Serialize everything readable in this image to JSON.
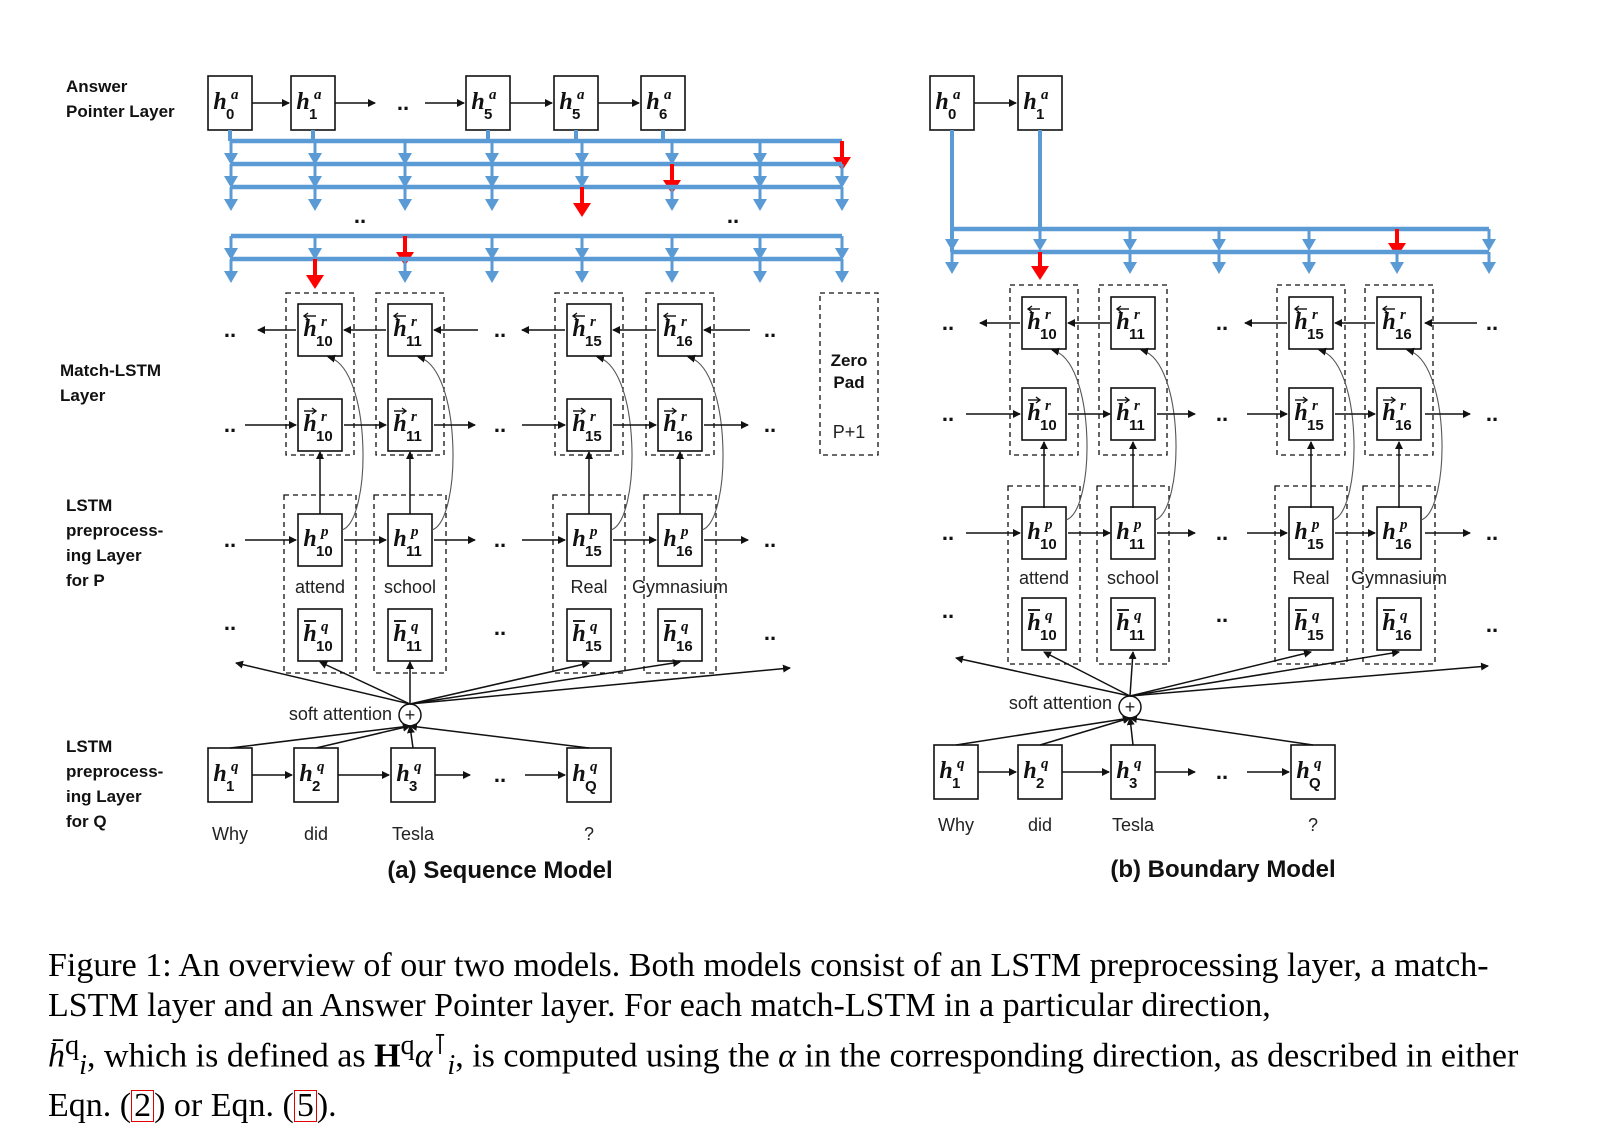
{
  "figure": {
    "layer_labels": {
      "answer_pointer": [
        "Answer",
        "Pointer Layer"
      ],
      "match_lstm": [
        "Match-LSTM",
        "Layer"
      ],
      "lstm_p": [
        "LSTM",
        "preprocess-",
        "ing Layer",
        "for P"
      ],
      "lstm_q": [
        "LSTM",
        "preprocess-",
        "ing Layer",
        "for Q"
      ]
    },
    "sequence_model": {
      "subtitle": "(a) Sequence Model",
      "answer_states": [
        {
          "sub": "0",
          "sup": "a"
        },
        {
          "sub": "1",
          "sup": "a"
        },
        {
          "sub": "5",
          "sup": "a"
        },
        {
          "sub": "5",
          "sup": "a"
        },
        {
          "sub": "6",
          "sup": "a"
        }
      ],
      "zero_pad": [
        "Zero",
        "Pad"
      ],
      "zero_pad_index": "P+1"
    },
    "boundary_model": {
      "subtitle": "(b) Boundary Model",
      "answer_states": [
        {
          "sub": "0",
          "sup": "a"
        },
        {
          "sub": "1",
          "sup": "a"
        }
      ]
    },
    "passage_columns": [
      {
        "index": "10",
        "word": "attend"
      },
      {
        "index": "11",
        "word": "school"
      },
      {
        "index": "15",
        "word": "Real"
      },
      {
        "index": "16",
        "word": "Gymnasium"
      }
    ],
    "question_states": [
      {
        "sub": "1",
        "word": "Why"
      },
      {
        "sub": "2",
        "word": "did"
      },
      {
        "sub": "3",
        "word": "Tesla"
      },
      {
        "sub": "Q",
        "word": "?"
      }
    ],
    "soft_attention_label": "soft attention",
    "ellipsis": "..",
    "colors": {
      "pointer_lines": "#5b9bd5",
      "pointer_selected": "#ff0000",
      "ink": "#111111"
    }
  },
  "caption": {
    "prefix": "Figure 1:",
    "sentence1": "An overview of our two models. Both models consist of an LSTM preprocessing layer, a match-LSTM layer and an Answer Pointer layer. For each match-LSTM in a particular direction,",
    "hbar_symbol": "h̄",
    "hbar_sup": "q",
    "hbar_sub": "i",
    "text2": ", which is defined as",
    "H_symbol": "H",
    "H_sup": "q",
    "alpha_symbol": "α",
    "alpha_sup": "⊺",
    "alpha_sub": "i",
    "text3": ", is computed using the",
    "alpha_plain": "α",
    "text4": "in the corresponding direction, as described in either Eqn. (",
    "ref1": "2",
    "text5": ") or Eqn. (",
    "ref2": "5",
    "text6": ")."
  }
}
